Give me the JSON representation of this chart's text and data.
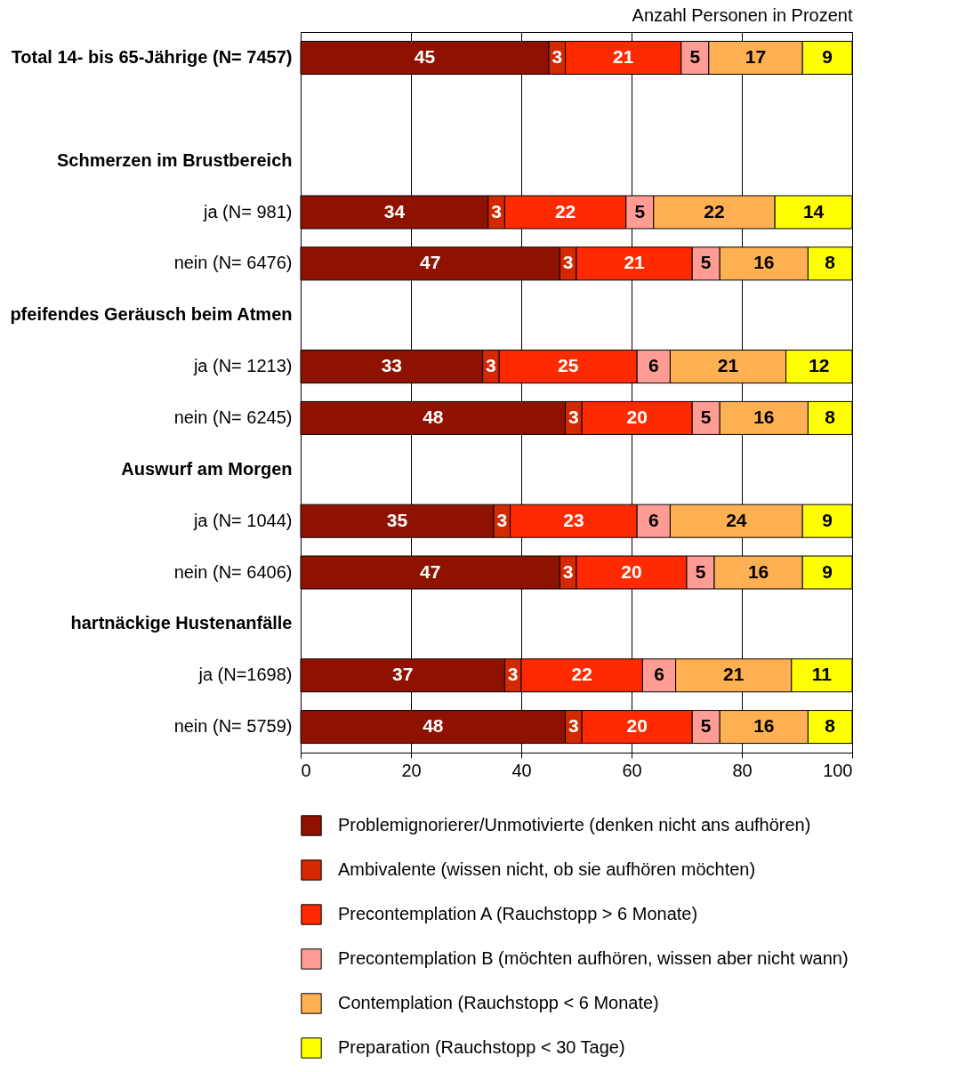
{
  "chart_data": {
    "type": "bar",
    "orientation": "horizontal",
    "stacked": true,
    "data_labels": true,
    "xlabel": "Anzahl Personen in Prozent",
    "xlim": [
      0,
      100
    ],
    "xticks": [
      0,
      20,
      40,
      60,
      80,
      100
    ],
    "grid": "x",
    "legend": "bottom",
    "categories": [
      "Total 14- bis 65-Jährige (N= 7457)",
      null,
      "Schmerzen im Brustbereich",
      "ja (N=   981)",
      "nein (N= 6476)",
      "pfeifendes Geräusch beim Atmen",
      "ja (N= 1213)",
      "nein (N= 6245)",
      "Auswurf am Morgen",
      "ja (N= 1044)",
      "nein (N= 6406)",
      "hartnäckige Hustenanfälle",
      "ja (N=1698)",
      "nein (N= 5759)"
    ],
    "series": [
      {
        "name": "Problemignorierer/Unmotivierte (denken nicht ans aufhören)",
        "color": "#8f1200",
        "values": [
          45,
          null,
          null,
          34,
          47,
          null,
          33,
          48,
          null,
          35,
          47,
          null,
          37,
          48
        ]
      },
      {
        "name": "Ambivalente (wissen nicht, ob sie aufhören möchten)",
        "color": "#d42800",
        "values": [
          3,
          null,
          null,
          3,
          3,
          null,
          3,
          3,
          null,
          3,
          3,
          null,
          3,
          3
        ]
      },
      {
        "name": "Precontemplation A (Rauchstopp > 6 Monate)",
        "color": "#ff2a00",
        "values": [
          21,
          null,
          null,
          22,
          21,
          null,
          25,
          20,
          null,
          23,
          20,
          null,
          22,
          20
        ]
      },
      {
        "name": "Precontemplation B (möchten aufhören, wissen aber nicht wann)",
        "color": "#ff9c94",
        "values": [
          5,
          null,
          null,
          5,
          5,
          null,
          6,
          5,
          null,
          6,
          5,
          null,
          6,
          5
        ]
      },
      {
        "name": "Contemplation (Rauchstopp < 6 Monate)",
        "color": "#ffb052",
        "values": [
          17,
          null,
          null,
          22,
          16,
          null,
          21,
          16,
          null,
          24,
          16,
          null,
          21,
          16
        ]
      },
      {
        "name": "Preparation (Rauchstopp < 30 Tage)",
        "color": "#ffff00",
        "values": [
          9,
          null,
          null,
          14,
          8,
          null,
          12,
          8,
          null,
          9,
          9,
          null,
          11,
          8
        ]
      }
    ]
  }
}
